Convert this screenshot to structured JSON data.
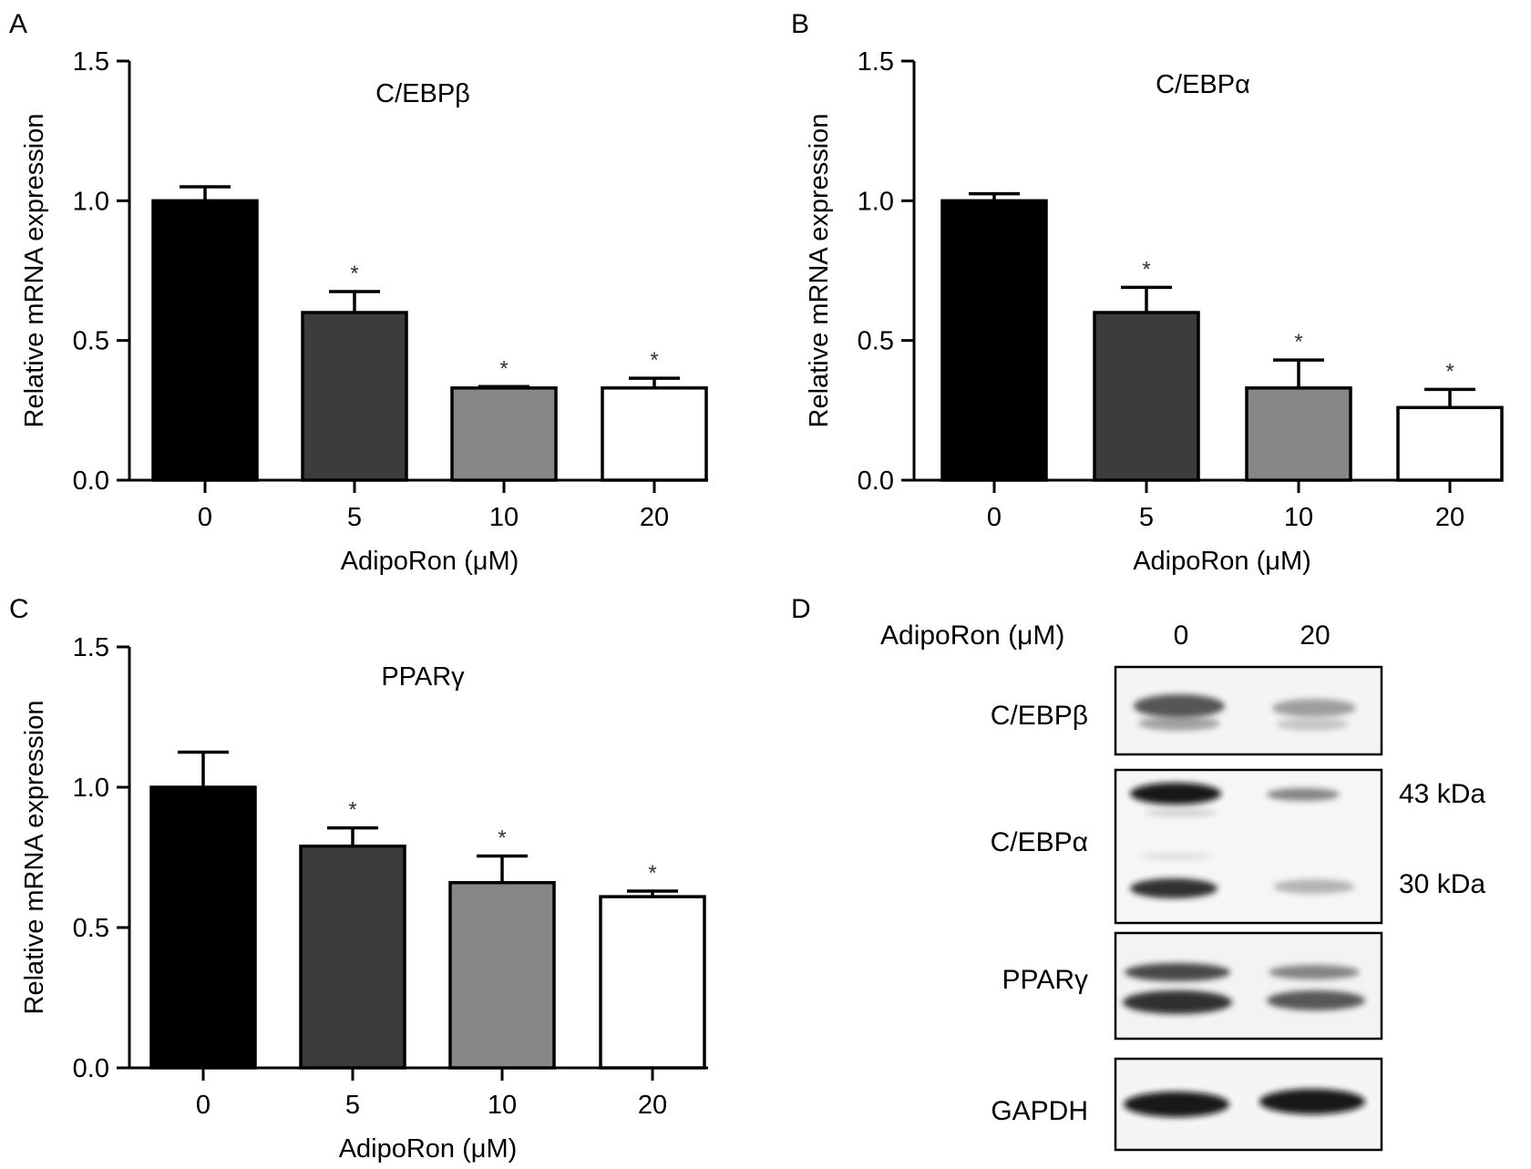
{
  "panel_letters": [
    "A",
    "B",
    "C",
    "D"
  ],
  "chart_data": [
    {
      "panel": "A",
      "type": "bar",
      "title": "C/EBPβ",
      "xlabel": "AdipoRon (μM)",
      "ylabel": "Relative mRNA expression",
      "categories": [
        "0",
        "5",
        "10",
        "20"
      ],
      "values": [
        1.0,
        0.6,
        0.33,
        0.33
      ],
      "errors": [
        0.05,
        0.075,
        0.005,
        0.035
      ],
      "significance": [
        "",
        "*",
        "*",
        "*"
      ],
      "bar_colors": [
        "#000000",
        "#3c3c3c",
        "#878787",
        "#ffffff"
      ],
      "ylim": [
        0,
        1.5
      ],
      "yticks": [
        "0.0",
        "0.5",
        "1.0",
        "1.5"
      ],
      "grid": false
    },
    {
      "panel": "B",
      "type": "bar",
      "title": "C/EBPα",
      "xlabel": "AdipoRon (μM)",
      "ylabel": "Relative mRNA expression",
      "categories": [
        "0",
        "5",
        "10",
        "20"
      ],
      "values": [
        1.0,
        0.6,
        0.33,
        0.26
      ],
      "errors": [
        0.025,
        0.09,
        0.1,
        0.065
      ],
      "significance": [
        "",
        "*",
        "*",
        "*"
      ],
      "bar_colors": [
        "#000000",
        "#3c3c3c",
        "#878787",
        "#ffffff"
      ],
      "ylim": [
        0,
        1.5
      ],
      "yticks": [
        "0.0",
        "0.5",
        "1.0",
        "1.5"
      ],
      "grid": false
    },
    {
      "panel": "C",
      "type": "bar",
      "title": "PPARγ",
      "xlabel": "AdipoRon (μM)",
      "ylabel": "Relative mRNA expression",
      "categories": [
        "0",
        "5",
        "10",
        "20"
      ],
      "values": [
        1.0,
        0.79,
        0.66,
        0.61
      ],
      "errors": [
        0.125,
        0.065,
        0.095,
        0.02
      ],
      "significance": [
        "",
        "*",
        "*",
        "*"
      ],
      "bar_colors": [
        "#000000",
        "#3c3c3c",
        "#878787",
        "#ffffff"
      ],
      "ylim": [
        0,
        1.5
      ],
      "yticks": [
        "0.0",
        "0.5",
        "1.0",
        "1.5"
      ],
      "grid": false
    }
  ],
  "western_blot": {
    "panel": "D",
    "header_label": "AdipoRon (μM)",
    "lanes": [
      "0",
      "20"
    ],
    "rows": [
      {
        "protein": "C/EBPβ",
        "sizes": []
      },
      {
        "protein": "C/EBPα",
        "sizes": [
          "43 kDa",
          "30 kDa"
        ]
      },
      {
        "protein": "PPARγ",
        "sizes": []
      },
      {
        "protein": "GAPDH",
        "sizes": []
      }
    ]
  }
}
